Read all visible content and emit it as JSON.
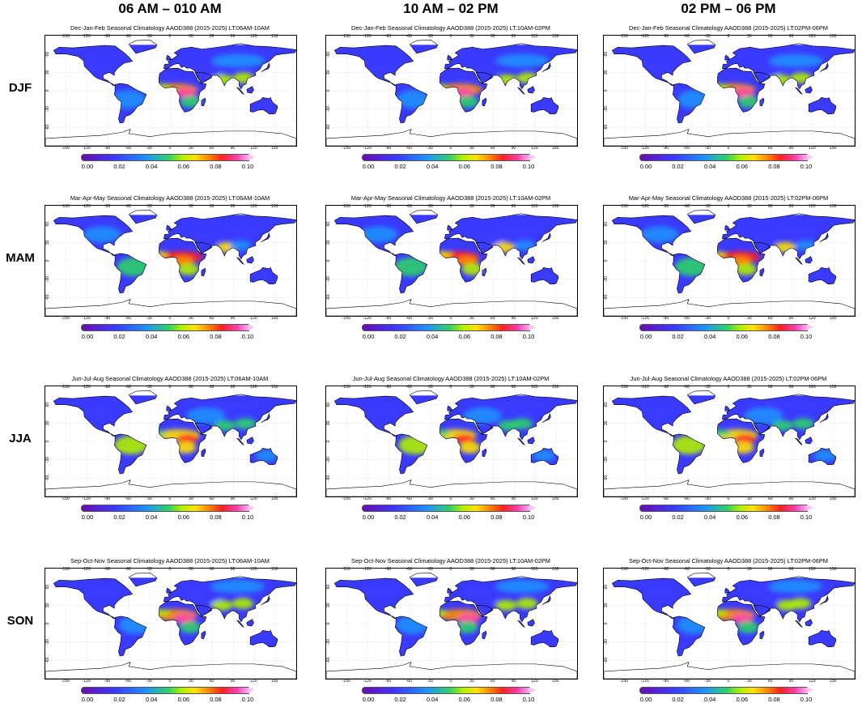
{
  "columns": [
    "06 AM – 010 AM",
    "10 AM – 02 PM",
    "02 PM – 06 PM"
  ],
  "rows": [
    {
      "label": "DJF",
      "titles": [
        "Dec-Jan-Feb Seasonal Climatology AAOD388 (2015-2025) LT:06AM-10AM",
        "Dec-Jan-Feb Seasonal Climatology AAOD388 (2015-2025) LT:10AM-02PM",
        "Dec-Jan-Feb Seasonal Climatology AAOD388 (2015-2025) LT:02PM-06PM"
      ]
    },
    {
      "label": "MAM",
      "titles": [
        "Mar-Apr-May Seasonal Climatology AAOD388 (2015-2025) LT:06AM-10AM",
        "Mar-Apr-May Seasonal Climatology AAOD388 (2015-2025) LT:10AM-02PM",
        "Mar-Apr-May Seasonal Climatology AAOD388 (2015-2025) LT:02PM-06PM"
      ]
    },
    {
      "label": "JJA",
      "titles": [
        "Jun-Jul-Aug Seasonal Climatology AAOD388 (2015-2025) LT:06AM-10AM",
        "Jun-Jul-Aug Seasonal Climatology AAOD388 (2015-2025) LT:10AM-02PM",
        "Jun-Jul-Aug Seasonal Climatology AAOD388 (2015-2025) LT:02PM-06PM"
      ]
    },
    {
      "label": "SON",
      "titles": [
        "Sep-Oct-Nov Seasonal Climatology AAOD388 (2015-2025) LT:06AM-10AM",
        "Sep-Oct-Nov Seasonal Climatology AAOD388 (2015-2025) LT:10AM-02PM",
        "Sep-Oct-Nov Seasonal Climatology AAOD388 (2015-2025) LT:02PM-06PM"
      ]
    }
  ],
  "longitude_labels": [
    "-150",
    "-120",
    "-90",
    "-60",
    "-30",
    "0",
    "30",
    "60",
    "90",
    "120",
    "150"
  ],
  "latitude_labels": [
    "60",
    "30",
    "0",
    "-30",
    "-60"
  ],
  "colorbar": {
    "ticks": [
      "0.00",
      "0.02",
      "0.04",
      "0.06",
      "0.08",
      "0.10"
    ],
    "colors": [
      "#6a0dad",
      "#3a3aff",
      "#1f8fff",
      "#2fd06a",
      "#b0f000",
      "#ffe100",
      "#ff8a00",
      "#ff2020",
      "#ff3fae",
      "#ffb0f0"
    ]
  }
}
